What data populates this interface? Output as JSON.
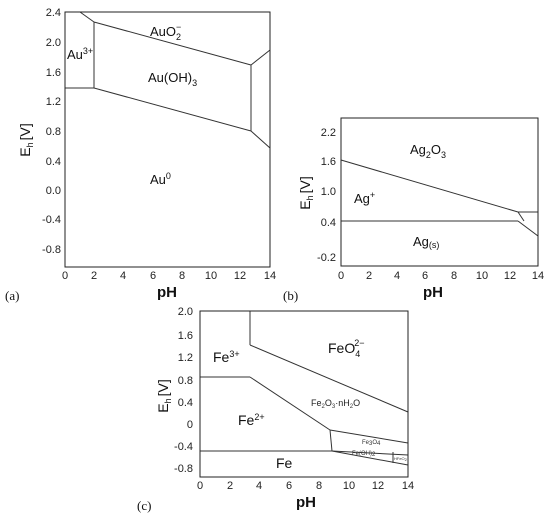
{
  "panels": {
    "a": {
      "tag": "(a)",
      "ylabel": "E",
      "ylabel_sub": "h",
      "ylabel_unit": "[V]",
      "xlabel": "pH",
      "xticks": [
        "0",
        "2",
        "4",
        "6",
        "8",
        "10",
        "12",
        "14"
      ],
      "yticks": [
        "2.4",
        "2.0",
        "1.6",
        "1.2",
        "0.8",
        "0.4",
        "0.0",
        "-0.4",
        "-0.8"
      ],
      "regions": {
        "au3": {
          "main": "Au",
          "sup": "3+"
        },
        "auo2": {
          "main": "AuO",
          "sub": "2",
          "sup": "−"
        },
        "auoh3": {
          "main": "Au(OH)",
          "sub": "3"
        },
        "au0": {
          "main": "Au",
          "sup": "0"
        }
      }
    },
    "b": {
      "tag": "(b)",
      "ylabel": "E",
      "ylabel_sub": "h",
      "ylabel_unit": "[V]",
      "xlabel": "pH",
      "xticks": [
        "0",
        "2",
        "4",
        "6",
        "8",
        "10",
        "12",
        "14"
      ],
      "yticks": [
        "2.2",
        "1.6",
        "1.0",
        "0.4",
        "-0.2"
      ],
      "regions": {
        "ag2o3": {
          "main": "Ag",
          "sub": "2",
          "main2": "O",
          "sub2": "3"
        },
        "agplus": {
          "main": "Ag",
          "sup": "+"
        },
        "ags": {
          "main": "Ag",
          "sub": "(s)"
        }
      }
    },
    "c": {
      "tag": "(c)",
      "ylabel": "E",
      "ylabel_sub": "h",
      "ylabel_unit": "[V]",
      "xlabel": "pH",
      "xticks": [
        "0",
        "2",
        "4",
        "6",
        "8",
        "10",
        "12",
        "14"
      ],
      "yticks": [
        "2.0",
        "1.6",
        "1.2",
        "0.8",
        "0.4",
        "0",
        "-0.4",
        "-0.8"
      ],
      "regions": {
        "fe3": {
          "main": "Fe",
          "sup": "3+"
        },
        "feo4": {
          "main": "FeO",
          "sub": "4",
          "sup": "2−"
        },
        "fe2": {
          "main": "Fe",
          "sup": "2+"
        },
        "fe2o3": {
          "main": "Fe",
          "sub": "2",
          "main2": "O",
          "sub2": "3",
          "main3": "·nH",
          "sub3": "2",
          "main4": "O"
        },
        "fe3o4": {
          "main": "Fe",
          "sub": "3",
          "main2": "O",
          "sub2": "4"
        },
        "feoh2": {
          "main": "Fe(OH)",
          "sub": "2"
        },
        "hfeo2": {
          "main": "HFeO",
          "sub": "2"
        },
        "fe": {
          "main": "Fe"
        }
      }
    }
  },
  "colors": {
    "line": "#333333",
    "frame": "#222222",
    "text": "#111111"
  }
}
